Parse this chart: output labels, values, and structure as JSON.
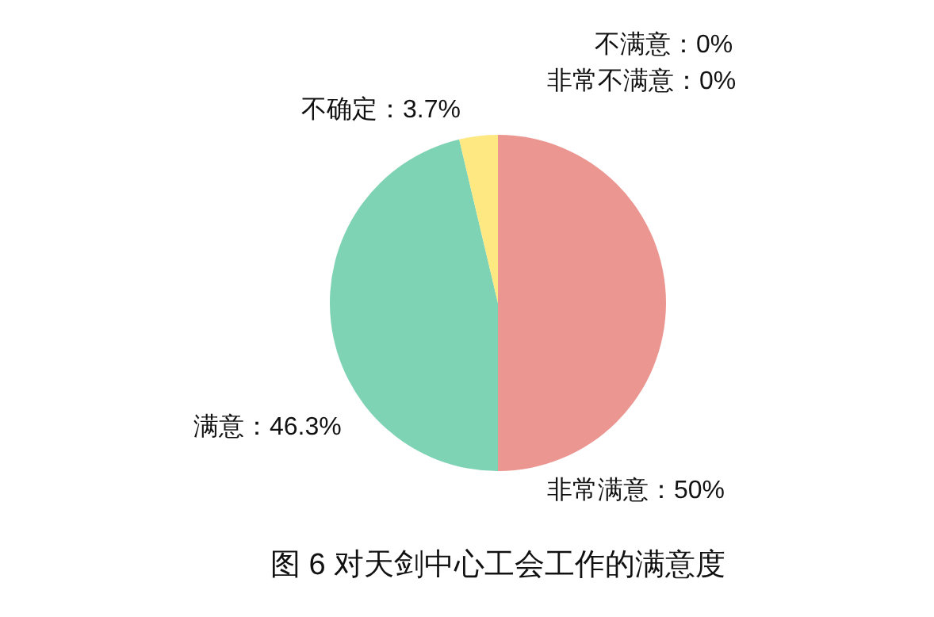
{
  "chart_data": {
    "type": "pie",
    "title": "图 6  对天剑中心工会工作的满意度",
    "categories": [
      "非常满意",
      "满意",
      "不确定",
      "不满意",
      "非常不满意"
    ],
    "values": [
      50,
      46.3,
      3.7,
      0,
      0
    ],
    "value_labels": [
      "：50%",
      "：46.3%",
      "：3.7%",
      "：0%",
      "：0%"
    ],
    "colors": [
      "#ec9692",
      "#7fd3b5",
      "#fde882",
      "#9fb3e8",
      "#f4b87a"
    ]
  }
}
